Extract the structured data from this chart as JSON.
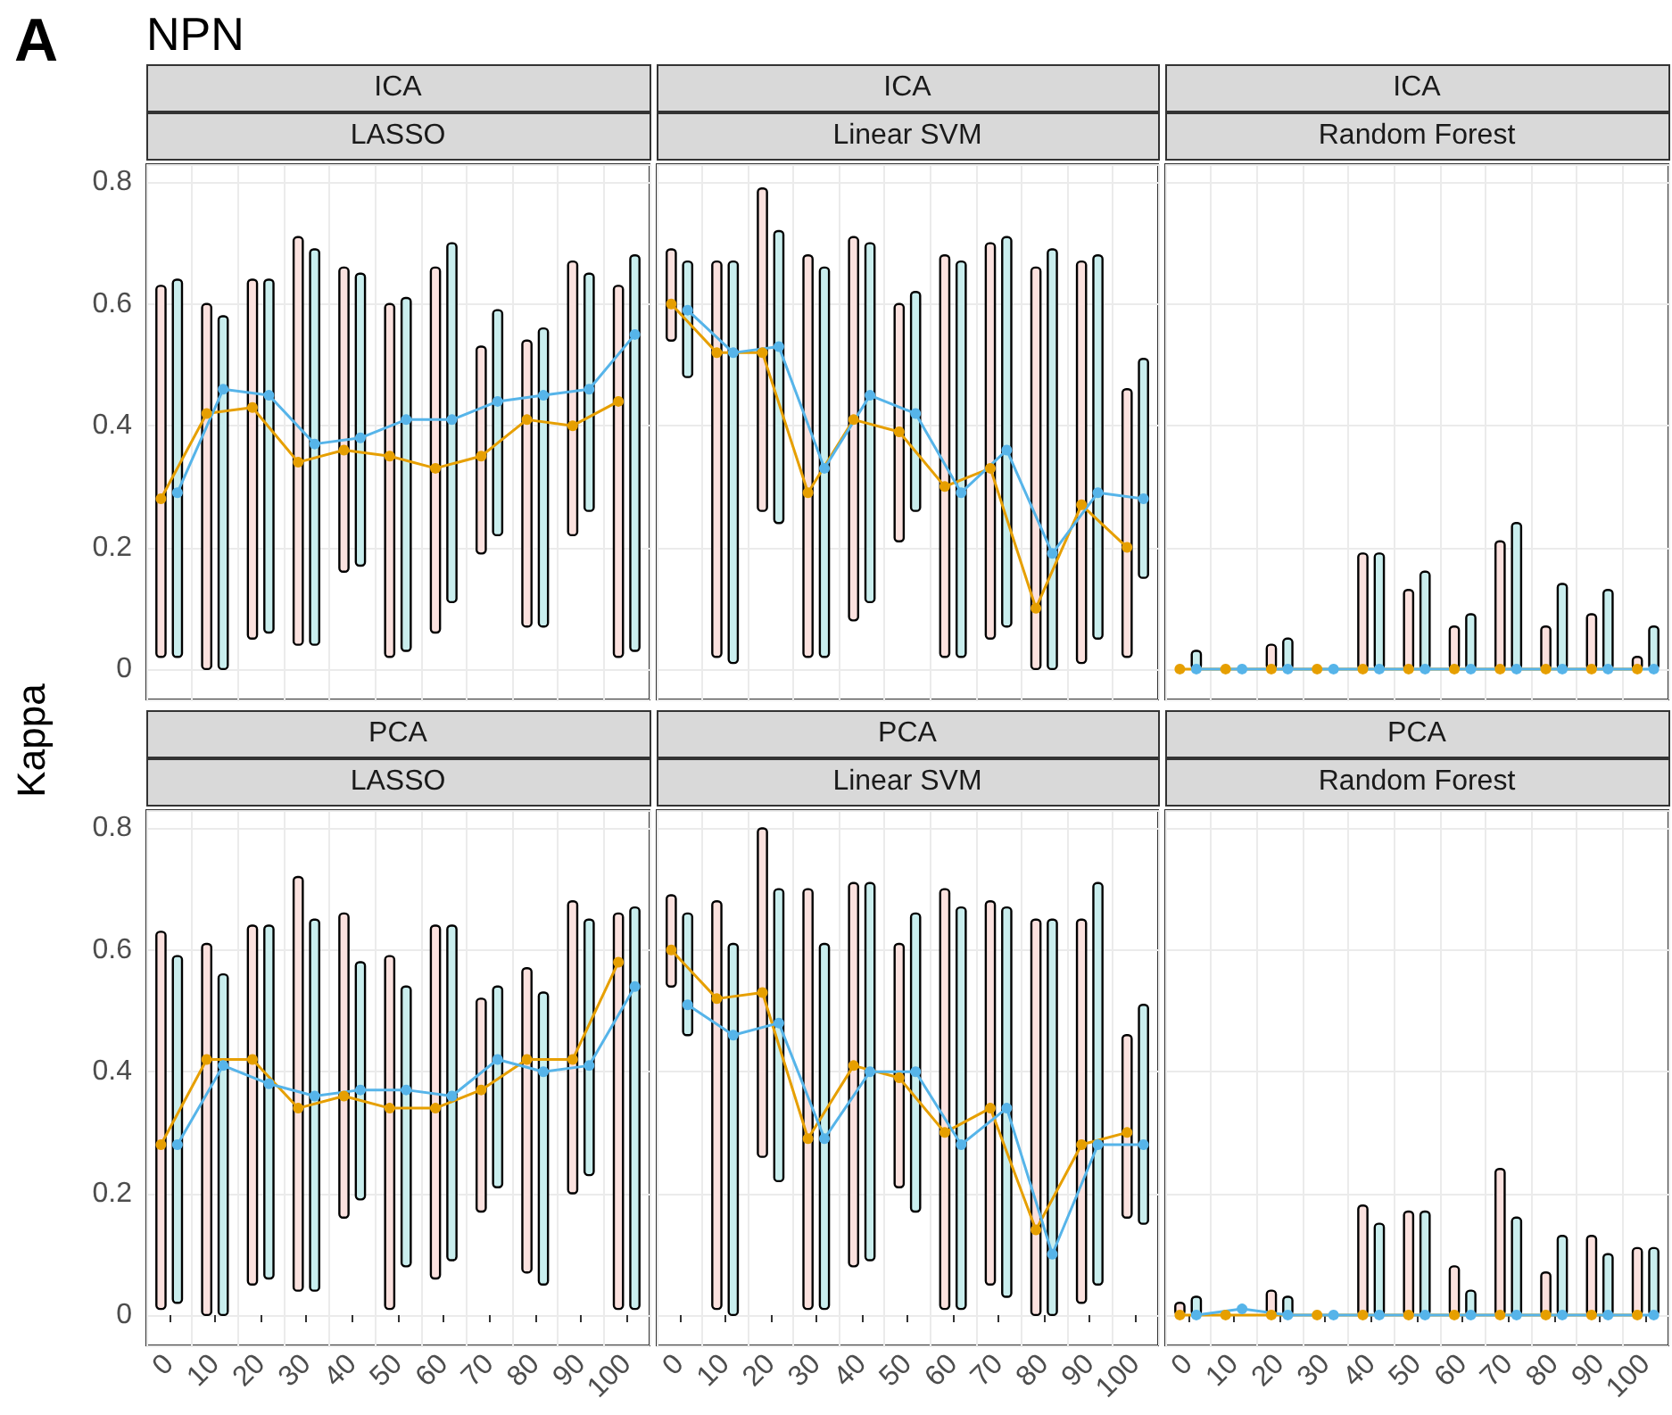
{
  "chart_data": [
    {
      "type": "bar",
      "title": "ICA",
      "subtitle": "LASSO",
      "ylabel": "Kappa",
      "annotations": [
        "A",
        "NPN"
      ],
      "categories": [
        "0",
        "10",
        "20",
        "30",
        "40",
        "50",
        "60",
        "70",
        "80",
        "90",
        "100"
      ],
      "ylim": [
        -0.05,
        0.83
      ],
      "yticks": [
        0,
        0.2,
        0.4,
        0.6,
        0.8
      ],
      "grid": true,
      "tick_labels": "y",
      "marker": "circle",
      "series": [
        {
          "color": "#fbe1de",
          "base": [
            0.02,
            0.0,
            0.05,
            0.04,
            0.16,
            0.02,
            0.06,
            0.19,
            0.07,
            0.22,
            0.02
          ],
          "values": [
            0.61,
            0.6,
            0.59,
            0.67,
            0.5,
            0.58,
            0.6,
            0.34,
            0.47,
            0.45,
            0.61
          ]
        },
        {
          "color": "#c9eeee",
          "base": [
            0.02,
            0.0,
            0.06,
            0.04,
            0.17,
            0.03,
            0.11,
            0.22,
            0.07,
            0.26,
            0.03
          ],
          "values": [
            0.62,
            0.58,
            0.58,
            0.65,
            0.48,
            0.58,
            0.59,
            0.37,
            0.49,
            0.39,
            0.65
          ]
        },
        {
          "type": "line",
          "color": "#e69f00",
          "values": [
            0.28,
            0.42,
            0.43,
            0.34,
            0.36,
            0.35,
            0.33,
            0.35,
            0.41,
            0.4,
            0.44
          ]
        },
        {
          "type": "line",
          "color": "#56b4e9",
          "values": [
            0.29,
            0.46,
            0.45,
            0.37,
            0.38,
            0.41,
            0.41,
            0.44,
            0.45,
            0.46,
            0.55
          ]
        }
      ]
    },
    {
      "type": "bar",
      "title": "ICA",
      "subtitle": "Linear SVM",
      "categories": [
        "0",
        "10",
        "20",
        "30",
        "40",
        "50",
        "60",
        "70",
        "80",
        "90",
        "100"
      ],
      "ylim": [
        -0.05,
        0.83
      ],
      "yticks": [
        0,
        0.2,
        0.4,
        0.6,
        0.8
      ],
      "grid": true,
      "tick_labels": false,
      "marker": "circle",
      "series": [
        {
          "color": "#fbe1de",
          "base": [
            0.54,
            0.02,
            0.26,
            0.02,
            0.08,
            0.21,
            0.02,
            0.05,
            0.0,
            0.01,
            0.02
          ],
          "values": [
            0.15,
            0.65,
            0.53,
            0.66,
            0.63,
            0.39,
            0.66,
            0.65,
            0.66,
            0.66,
            0.44
          ]
        },
        {
          "color": "#c9eeee",
          "base": [
            0.48,
            0.01,
            0.24,
            0.02,
            0.11,
            0.26,
            0.02,
            0.07,
            0.0,
            0.05,
            0.15
          ],
          "values": [
            0.19,
            0.66,
            0.48,
            0.64,
            0.59,
            0.36,
            0.65,
            0.64,
            0.69,
            0.63,
            0.36
          ]
        },
        {
          "type": "line",
          "color": "#e69f00",
          "values": [
            0.6,
            0.52,
            0.52,
            0.29,
            0.41,
            0.39,
            0.3,
            0.33,
            0.1,
            0.27,
            0.2
          ]
        },
        {
          "type": "line",
          "color": "#56b4e9",
          "values": [
            0.59,
            0.52,
            0.53,
            0.33,
            0.45,
            0.42,
            0.29,
            0.36,
            0.19,
            0.29,
            0.28
          ]
        }
      ]
    },
    {
      "type": "bar",
      "title": "ICA",
      "subtitle": "Random Forest",
      "categories": [
        "0",
        "10",
        "20",
        "30",
        "40",
        "50",
        "60",
        "70",
        "80",
        "90",
        "100"
      ],
      "ylim": [
        -0.05,
        0.83
      ],
      "yticks": [
        0,
        0.2,
        0.4,
        0.6,
        0.8
      ],
      "grid": true,
      "tick_labels": false,
      "marker": "circle",
      "series": [
        {
          "color": "#fbe1de",
          "values": [
            null,
            null,
            0.04,
            null,
            0.19,
            0.13,
            0.07,
            0.21,
            0.07,
            0.09,
            0.02
          ]
        },
        {
          "color": "#c9eeee",
          "values": [
            0.03,
            null,
            0.05,
            null,
            0.19,
            0.16,
            0.09,
            0.24,
            0.14,
            0.13,
            0.07
          ]
        },
        {
          "type": "line",
          "color": "#e69f00",
          "values": [
            0,
            0,
            0,
            0,
            0,
            0,
            0,
            0,
            0,
            0,
            0
          ]
        },
        {
          "type": "line",
          "color": "#56b4e9",
          "values": [
            0,
            0,
            0,
            0,
            0,
            0,
            0,
            0,
            0,
            0,
            0
          ]
        }
      ]
    },
    {
      "type": "bar",
      "title": "PCA",
      "subtitle": "LASSO",
      "categories": [
        "0",
        "10",
        "20",
        "30",
        "40",
        "50",
        "60",
        "70",
        "80",
        "90",
        "100"
      ],
      "ylim": [
        -0.05,
        0.83
      ],
      "yticks": [
        0,
        0.2,
        0.4,
        0.6,
        0.8
      ],
      "grid": true,
      "marker": "circle",
      "series": [
        {
          "color": "#fbe1de",
          "base": [
            0.01,
            0.0,
            0.05,
            0.04,
            0.16,
            0.01,
            0.06,
            0.17,
            0.07,
            0.2,
            0.01
          ],
          "values": [
            0.62,
            0.61,
            0.59,
            0.68,
            0.5,
            0.58,
            0.58,
            0.35,
            0.5,
            0.48,
            0.65
          ]
        },
        {
          "color": "#c9eeee",
          "base": [
            0.02,
            0.0,
            0.06,
            0.04,
            0.19,
            0.08,
            0.09,
            0.21,
            0.05,
            0.23,
            0.01
          ],
          "values": [
            0.57,
            0.56,
            0.58,
            0.61,
            0.39,
            0.46,
            0.55,
            0.33,
            0.48,
            0.42,
            0.66
          ]
        },
        {
          "type": "line",
          "color": "#e69f00",
          "values": [
            0.28,
            0.42,
            0.42,
            0.34,
            0.36,
            0.34,
            0.34,
            0.37,
            0.42,
            0.42,
            0.58
          ]
        },
        {
          "type": "line",
          "color": "#56b4e9",
          "values": [
            0.28,
            0.41,
            0.38,
            0.36,
            0.37,
            0.37,
            0.36,
            0.42,
            0.4,
            0.41,
            0.54
          ]
        }
      ]
    },
    {
      "type": "bar",
      "title": "PCA",
      "subtitle": "Linear SVM",
      "categories": [
        "0",
        "10",
        "20",
        "30",
        "40",
        "50",
        "60",
        "70",
        "80",
        "90",
        "100"
      ],
      "ylim": [
        -0.05,
        0.83
      ],
      "yticks": [
        0,
        0.2,
        0.4,
        0.6,
        0.8
      ],
      "grid": true,
      "tick_labels": "x",
      "marker": "circle",
      "series": [
        {
          "color": "#fbe1de",
          "base": [
            0.54,
            0.01,
            0.26,
            0.01,
            0.08,
            0.21,
            0.01,
            0.05,
            0.0,
            0.02,
            0.16
          ],
          "values": [
            0.15,
            0.67,
            0.54,
            0.69,
            0.63,
            0.4,
            0.69,
            0.63,
            0.65,
            0.63,
            0.3
          ]
        },
        {
          "color": "#c9eeee",
          "base": [
            0.46,
            0.0,
            0.22,
            0.01,
            0.09,
            0.17,
            0.01,
            0.03,
            0.0,
            0.05,
            0.15
          ],
          "values": [
            0.2,
            0.61,
            0.48,
            0.6,
            0.62,
            0.49,
            0.66,
            0.64,
            0.65,
            0.66,
            0.36
          ]
        },
        {
          "type": "line",
          "color": "#e69f00",
          "values": [
            0.6,
            0.52,
            0.53,
            0.29,
            0.41,
            0.39,
            0.3,
            0.34,
            0.14,
            0.28,
            0.3
          ]
        },
        {
          "type": "line",
          "color": "#56b4e9",
          "values": [
            0.51,
            0.46,
            0.48,
            0.29,
            0.4,
            0.4,
            0.28,
            0.34,
            0.1,
            0.28,
            0.28
          ]
        }
      ]
    },
    {
      "type": "bar",
      "title": "PCA",
      "subtitle": "Random Forest",
      "categories": [
        "0",
        "10",
        "20",
        "30",
        "40",
        "50",
        "60",
        "70",
        "80",
        "90",
        "100"
      ],
      "ylim": [
        -0.05,
        0.83
      ],
      "yticks": [
        0,
        0.2,
        0.4,
        0.6,
        0.8
      ],
      "grid": true,
      "tick_labels": "x",
      "marker": "circle",
      "series": [
        {
          "color": "#fbe1de",
          "values": [
            0.02,
            null,
            0.04,
            null,
            0.18,
            0.17,
            0.08,
            0.24,
            0.07,
            0.13,
            0.11
          ]
        },
        {
          "color": "#c9eeee",
          "values": [
            0.03,
            null,
            0.03,
            null,
            0.15,
            0.17,
            0.04,
            0.16,
            0.13,
            0.1,
            0.11
          ]
        },
        {
          "type": "line",
          "color": "#e69f00",
          "values": [
            0,
            0,
            0,
            0,
            0,
            0,
            0,
            0,
            0,
            0,
            0
          ]
        },
        {
          "type": "line",
          "color": "#56b4e9",
          "values": [
            0,
            0.01,
            0,
            0,
            0,
            0,
            0,
            0,
            0,
            0,
            0
          ]
        }
      ]
    }
  ]
}
